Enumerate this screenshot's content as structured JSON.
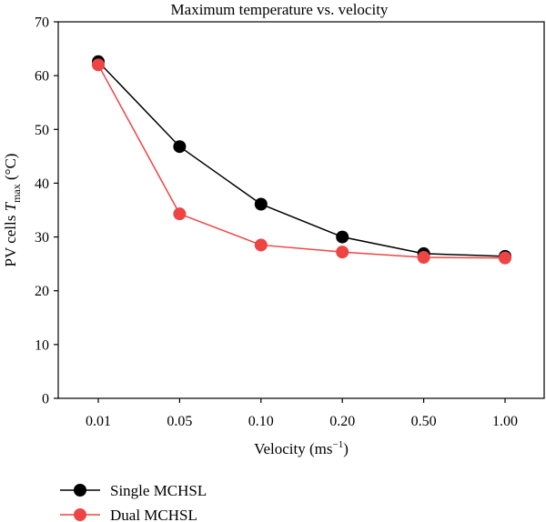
{
  "chart_data": {
    "type": "line",
    "title": "Maximum temperature vs. velocity",
    "xlabel": {
      "base": "Velocity (ms",
      "sup": "−1",
      "end": ")"
    },
    "ylabel": {
      "base": "PV cells ",
      "var": "T",
      "sub": "max",
      "unit": " (°C)"
    },
    "categories": [
      "0.01",
      "0.05",
      "0.10",
      "0.20",
      "0.50",
      "1.00"
    ],
    "ylim": [
      0,
      70
    ],
    "yticks": [
      "0",
      "10",
      "20",
      "30",
      "40",
      "50",
      "60",
      "70"
    ],
    "grid": false,
    "legend_position": "bottom-left, below plot",
    "series": [
      {
        "name": "Single MCHSL",
        "color": "#000000",
        "values": [
          62.6,
          46.8,
          36.1,
          30.0,
          26.9,
          26.4
        ]
      },
      {
        "name": "Dual MCHSL",
        "color": "#ee4444",
        "values": [
          62.0,
          34.3,
          28.5,
          27.2,
          26.2,
          26.1
        ]
      }
    ]
  }
}
